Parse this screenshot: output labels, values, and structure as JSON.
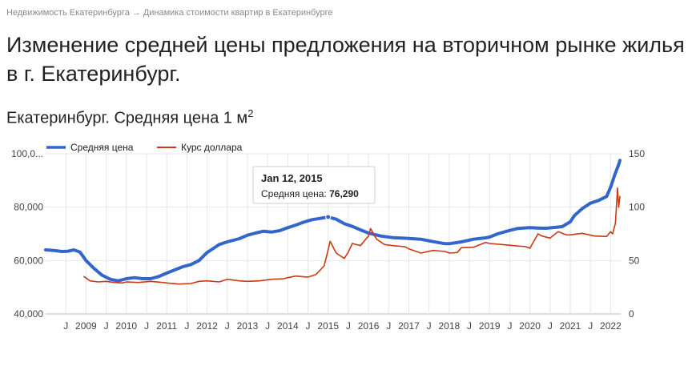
{
  "breadcrumb": {
    "item1": "Недвижимость Екатеринбурга",
    "separator": "→",
    "item2": "Динамика стоимости квартир в Екатеринбурге"
  },
  "page_title": "Изменение средней цены предложения на вторичном рынке жилья в г. Екатеринбург.",
  "chart_title_main": "Екатеринбург. Средняя цена 1 м",
  "chart_title_sup": "2",
  "tooltip": {
    "date": "Jan 12, 2015",
    "label": "Средняя цена: ",
    "value": "76,290"
  },
  "colors": {
    "series1": "#3366cc",
    "series2": "#cc3912",
    "grid": "#e6e6e6",
    "axis_text": "#444444"
  },
  "chart_data": {
    "type": "line",
    "title": "Екатеринбург. Средняя цена 1 м2",
    "legend_position": "top-left",
    "grid": true,
    "ylim_left": [
      40000,
      100000
    ],
    "ylim_right": [
      0,
      150
    ],
    "y_ticks_left": [
      "40,000",
      "60,000",
      "80,000",
      "100,0..."
    ],
    "y_tick_values_left": [
      40000,
      60000,
      80000,
      100000
    ],
    "y_ticks_right": [
      "0",
      "50",
      "100",
      "150"
    ],
    "y_tick_values_right": [
      0,
      50,
      100,
      150
    ],
    "x_range": [
      2008.0,
      2022.25
    ],
    "x_ticks": [
      {
        "label": "J",
        "x": 2008.5
      },
      {
        "label": "2009",
        "x": 2009.0
      },
      {
        "label": "J",
        "x": 2009.5
      },
      {
        "label": "2010",
        "x": 2010.0
      },
      {
        "label": "J",
        "x": 2010.5
      },
      {
        "label": "2011",
        "x": 2011.0
      },
      {
        "label": "J",
        "x": 2011.5
      },
      {
        "label": "2012",
        "x": 2012.0
      },
      {
        "label": "J",
        "x": 2012.5
      },
      {
        "label": "2013",
        "x": 2013.0
      },
      {
        "label": "J",
        "x": 2013.5
      },
      {
        "label": "2014",
        "x": 2014.0
      },
      {
        "label": "J",
        "x": 2014.5
      },
      {
        "label": "2015",
        "x": 2015.0
      },
      {
        "label": "J",
        "x": 2015.5
      },
      {
        "label": "2016",
        "x": 2016.0
      },
      {
        "label": "J",
        "x": 2016.5
      },
      {
        "label": "2017",
        "x": 2017.0
      },
      {
        "label": "J",
        "x": 2017.5
      },
      {
        "label": "2018",
        "x": 2018.0
      },
      {
        "label": "J",
        "x": 2018.5
      },
      {
        "label": "2019",
        "x": 2019.0
      },
      {
        "label": "J",
        "x": 2019.5
      },
      {
        "label": "2020",
        "x": 2020.0
      },
      {
        "label": "J",
        "x": 2020.5
      },
      {
        "label": "2021",
        "x": 2021.0
      },
      {
        "label": "J",
        "x": 2021.5
      },
      {
        "label": "2022",
        "x": 2022.0
      }
    ],
    "series": [
      {
        "name": "Средняя цена",
        "axis": "left",
        "points": [
          [
            2008.0,
            64000
          ],
          [
            2008.2,
            63800
          ],
          [
            2008.4,
            63400
          ],
          [
            2008.55,
            63500
          ],
          [
            2008.7,
            64000
          ],
          [
            2008.85,
            63200
          ],
          [
            2009.0,
            60000
          ],
          [
            2009.2,
            57000
          ],
          [
            2009.4,
            54500
          ],
          [
            2009.6,
            53000
          ],
          [
            2009.8,
            52400
          ],
          [
            2010.0,
            53200
          ],
          [
            2010.2,
            53600
          ],
          [
            2010.4,
            53200
          ],
          [
            2010.6,
            53200
          ],
          [
            2010.8,
            54000
          ],
          [
            2011.0,
            55300
          ],
          [
            2011.2,
            56500
          ],
          [
            2011.4,
            57700
          ],
          [
            2011.6,
            58500
          ],
          [
            2011.8,
            60000
          ],
          [
            2012.0,
            63000
          ],
          [
            2012.1,
            64000
          ],
          [
            2012.3,
            66000
          ],
          [
            2012.5,
            67000
          ],
          [
            2012.8,
            68200
          ],
          [
            2013.0,
            69500
          ],
          [
            2013.2,
            70300
          ],
          [
            2013.4,
            71000
          ],
          [
            2013.6,
            70700
          ],
          [
            2013.8,
            71200
          ],
          [
            2014.0,
            72300
          ],
          [
            2014.2,
            73300
          ],
          [
            2014.4,
            74400
          ],
          [
            2014.6,
            75300
          ],
          [
            2014.8,
            75800
          ],
          [
            2015.0,
            76290
          ],
          [
            2015.2,
            75500
          ],
          [
            2015.4,
            73800
          ],
          [
            2015.6,
            72800
          ],
          [
            2015.8,
            71500
          ],
          [
            2016.0,
            70300
          ],
          [
            2016.3,
            69200
          ],
          [
            2016.6,
            68600
          ],
          [
            2017.0,
            68300
          ],
          [
            2017.3,
            68000
          ],
          [
            2017.6,
            67100
          ],
          [
            2017.9,
            66300
          ],
          [
            2018.0,
            66300
          ],
          [
            2018.3,
            67000
          ],
          [
            2018.6,
            68000
          ],
          [
            2018.9,
            68500
          ],
          [
            2019.0,
            68800
          ],
          [
            2019.2,
            70000
          ],
          [
            2019.5,
            71300
          ],
          [
            2019.7,
            72000
          ],
          [
            2020.0,
            72300
          ],
          [
            2020.2,
            72200
          ],
          [
            2020.4,
            72100
          ],
          [
            2020.6,
            72400
          ],
          [
            2020.8,
            72700
          ],
          [
            2021.0,
            74500
          ],
          [
            2021.1,
            76800
          ],
          [
            2021.3,
            79500
          ],
          [
            2021.5,
            81500
          ],
          [
            2021.7,
            82500
          ],
          [
            2021.9,
            84000
          ],
          [
            2022.0,
            87500
          ],
          [
            2022.1,
            92000
          ],
          [
            2022.2,
            96000
          ],
          [
            2022.23,
            97500
          ]
        ]
      },
      {
        "name": "Курс доллара",
        "axis": "right",
        "points": [
          [
            2008.95,
            35
          ],
          [
            2009.1,
            31
          ],
          [
            2009.3,
            30
          ],
          [
            2009.5,
            30.5
          ],
          [
            2009.7,
            29.5
          ],
          [
            2009.9,
            29
          ],
          [
            2010.0,
            30
          ],
          [
            2010.3,
            29.5
          ],
          [
            2010.6,
            30.5
          ],
          [
            2010.9,
            29.5
          ],
          [
            2011.0,
            29
          ],
          [
            2011.3,
            28
          ],
          [
            2011.6,
            28.5
          ],
          [
            2011.8,
            30.5
          ],
          [
            2012.0,
            31
          ],
          [
            2012.3,
            30
          ],
          [
            2012.5,
            32.5
          ],
          [
            2012.8,
            31
          ],
          [
            2013.0,
            30.5
          ],
          [
            2013.3,
            31
          ],
          [
            2013.6,
            32.5
          ],
          [
            2013.9,
            33
          ],
          [
            2014.0,
            34
          ],
          [
            2014.2,
            35.5
          ],
          [
            2014.5,
            34.5
          ],
          [
            2014.7,
            37
          ],
          [
            2014.9,
            45
          ],
          [
            2015.0,
            60
          ],
          [
            2015.05,
            68
          ],
          [
            2015.2,
            57
          ],
          [
            2015.4,
            52
          ],
          [
            2015.5,
            58
          ],
          [
            2015.6,
            66
          ],
          [
            2015.8,
            64
          ],
          [
            2016.0,
            73
          ],
          [
            2016.05,
            80
          ],
          [
            2016.2,
            70
          ],
          [
            2016.4,
            65
          ],
          [
            2016.6,
            64
          ],
          [
            2016.9,
            63
          ],
          [
            2017.0,
            61
          ],
          [
            2017.3,
            57
          ],
          [
            2017.6,
            59.5
          ],
          [
            2017.9,
            58.5
          ],
          [
            2018.0,
            57
          ],
          [
            2018.2,
            57.5
          ],
          [
            2018.3,
            62
          ],
          [
            2018.6,
            62.5
          ],
          [
            2018.9,
            67
          ],
          [
            2019.0,
            66
          ],
          [
            2019.3,
            65
          ],
          [
            2019.6,
            64
          ],
          [
            2019.9,
            63
          ],
          [
            2020.0,
            61.5
          ],
          [
            2020.2,
            75
          ],
          [
            2020.3,
            73
          ],
          [
            2020.5,
            71
          ],
          [
            2020.7,
            77
          ],
          [
            2020.9,
            74
          ],
          [
            2021.0,
            74
          ],
          [
            2021.3,
            75.5
          ],
          [
            2021.6,
            73
          ],
          [
            2021.9,
            72.5
          ],
          [
            2022.0,
            77
          ],
          [
            2022.05,
            75
          ],
          [
            2022.12,
            85
          ],
          [
            2022.17,
            118
          ],
          [
            2022.2,
            100
          ],
          [
            2022.23,
            110
          ]
        ]
      }
    ]
  }
}
